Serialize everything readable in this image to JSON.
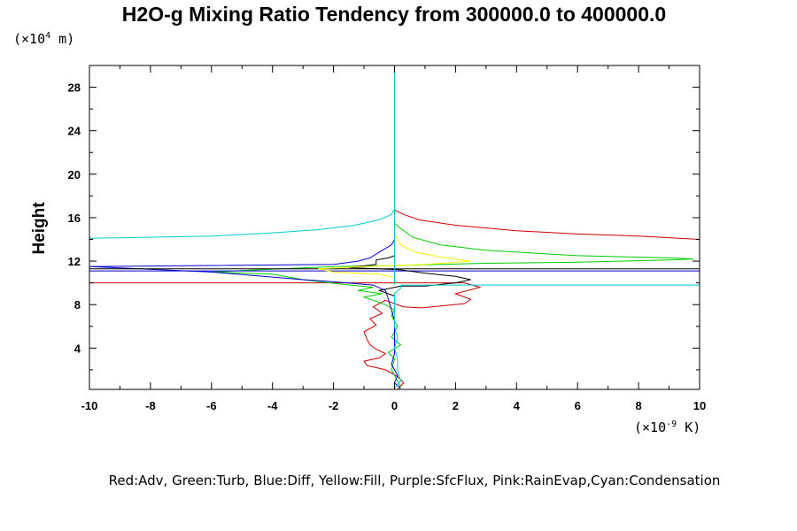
{
  "chart_data": {
    "type": "line",
    "title": "H2O-g Mixing Ratio Tendency from 300000.0 to 400000.0",
    "xlabel": "",
    "ylabel": "Height",
    "x_unit_prefix": "(×10",
    "x_unit_exp": "-9",
    "x_unit_suffix": " K)",
    "y_unit_prefix": "(×10",
    "y_unit_exp": "4",
    "y_unit_suffix": " m)",
    "xlim": [
      -10,
      10
    ],
    "ylim": [
      0.2,
      30
    ],
    "x_ticks": [
      -10,
      -8,
      -6,
      -4,
      -2,
      0,
      2,
      4,
      6,
      8,
      10
    ],
    "y_ticks": [
      4,
      8,
      12,
      16,
      20,
      24,
      28
    ],
    "grid": false,
    "legend_text": "Red:Adv, Green:Turb, Blue:Diff, Yellow:Fill, Purple:SfcFlux, Pink:RainEvap,Cyan:Condensation",
    "series": [
      {
        "color": "#cc0000",
        "points": [
          [
            0.1,
            0.2
          ],
          [
            0.3,
            0.8
          ],
          [
            0.1,
            1.4
          ],
          [
            -0.3,
            2.0
          ],
          [
            -0.9,
            2.4
          ],
          [
            -1.0,
            2.8
          ],
          [
            -0.5,
            3.1
          ],
          [
            -0.3,
            3.5
          ],
          [
            -0.6,
            3.9
          ],
          [
            -0.8,
            4.3
          ],
          [
            -0.9,
            4.8
          ],
          [
            -1.0,
            5.5
          ],
          [
            -0.6,
            6.1
          ],
          [
            -0.8,
            6.7
          ],
          [
            -0.4,
            7.2
          ],
          [
            -0.7,
            7.8
          ],
          [
            -0.3,
            8.4
          ],
          [
            0.3,
            7.8
          ],
          [
            0.9,
            7.7
          ],
          [
            2.3,
            8.1
          ],
          [
            2.5,
            8.5
          ],
          [
            2.0,
            9.0
          ],
          [
            2.8,
            9.6
          ],
          [
            2.3,
            10.0
          ],
          [
            -10.0,
            10.0
          ]
        ]
      },
      {
        "color": "#cc0000",
        "points": [
          [
            0.0,
            16.7
          ],
          [
            0.3,
            16.3
          ],
          [
            0.8,
            15.8
          ],
          [
            2.0,
            15.3
          ],
          [
            4.0,
            14.8
          ],
          [
            6.0,
            14.5
          ],
          [
            8.0,
            14.3
          ],
          [
            10.0,
            14.0
          ]
        ]
      },
      {
        "color": "#00cc00",
        "points": [
          [
            0.2,
            0.4
          ],
          [
            0.1,
            1.0
          ],
          [
            -0.1,
            2.0
          ],
          [
            0.0,
            3.0
          ],
          [
            -0.2,
            3.6
          ],
          [
            0.2,
            4.3
          ],
          [
            -0.1,
            5.0
          ],
          [
            0.1,
            6.0
          ],
          [
            -0.1,
            7.0
          ],
          [
            0.0,
            7.5
          ],
          [
            -0.3,
            8.0
          ],
          [
            -0.7,
            8.4
          ],
          [
            -1.0,
            8.7
          ],
          [
            -0.4,
            9.0
          ],
          [
            -1.2,
            9.3
          ],
          [
            -0.7,
            9.6
          ],
          [
            -1.8,
            9.9
          ],
          [
            -3.0,
            10.3
          ],
          [
            -4.0,
            10.8
          ],
          [
            -6.0,
            11.0
          ],
          [
            -4.5,
            11.2
          ],
          [
            -2.0,
            11.5
          ],
          [
            0.0,
            11.6
          ],
          [
            3.0,
            11.8
          ],
          [
            6.0,
            11.9
          ],
          [
            9.0,
            12.1
          ],
          [
            9.8,
            12.2
          ],
          [
            9.0,
            12.3
          ],
          [
            6.0,
            12.5
          ],
          [
            3.0,
            13.0
          ],
          [
            1.5,
            13.5
          ],
          [
            0.6,
            14.2
          ],
          [
            0.2,
            15.0
          ],
          [
            0.0,
            15.5
          ]
        ]
      },
      {
        "color": "#0000cc",
        "points": [
          [
            0.2,
            0.3
          ],
          [
            0.0,
            0.8
          ],
          [
            0.1,
            1.5
          ],
          [
            -0.1,
            2.5
          ],
          [
            0.0,
            3.5
          ],
          [
            0.0,
            4.5
          ],
          [
            0.0,
            5.5
          ],
          [
            0.0,
            6.5
          ],
          [
            -0.1,
            7.5
          ],
          [
            -0.2,
            8.5
          ],
          [
            -0.3,
            9.3
          ],
          [
            -0.7,
            9.8
          ],
          [
            -2.0,
            10.1
          ],
          [
            -3.0,
            10.3
          ],
          [
            -6.0,
            11.0
          ],
          [
            -10.0,
            11.5
          ],
          [
            -6.0,
            11.6
          ],
          [
            -2.0,
            11.7
          ],
          [
            -1.2,
            12.0
          ],
          [
            -0.8,
            12.3
          ],
          [
            -0.4,
            13.0
          ],
          [
            -0.1,
            13.5
          ],
          [
            0.0,
            14.0
          ]
        ]
      },
      {
        "color": "#0000cc",
        "points": [
          [
            -10.0,
            11.1
          ],
          [
            10.0,
            11.1
          ]
        ]
      },
      {
        "color": "#000000",
        "points": [
          [
            -10.0,
            11.3
          ],
          [
            10.0,
            11.3
          ]
        ]
      },
      {
        "color": "#000000",
        "points": [
          [
            0.0,
            8.0
          ],
          [
            0.0,
            8.8
          ],
          [
            -0.5,
            9.3
          ],
          [
            0.2,
            9.7
          ],
          [
            1.0,
            9.7
          ],
          [
            2.0,
            10.0
          ],
          [
            2.5,
            10.3
          ],
          [
            2.0,
            10.6
          ],
          [
            1.0,
            10.9
          ],
          [
            0.2,
            11.2
          ],
          [
            -1.5,
            11.4
          ],
          [
            -0.6,
            11.7
          ],
          [
            -0.6,
            12.1
          ],
          [
            -0.2,
            12.3
          ],
          [
            0.0,
            12.5
          ]
        ]
      },
      {
        "color": "#ffff00",
        "points": [
          [
            0.0,
            15.6
          ],
          [
            0.0,
            14.5
          ],
          [
            0.2,
            13.5
          ],
          [
            0.7,
            12.8
          ],
          [
            1.5,
            12.4
          ],
          [
            2.5,
            12.0
          ],
          [
            1.0,
            11.7
          ],
          [
            -1.0,
            11.5
          ],
          [
            -2.5,
            11.3
          ],
          [
            -2.0,
            11.0
          ],
          [
            -0.5,
            10.8
          ],
          [
            0.0,
            10.5
          ]
        ]
      },
      {
        "color": "#00cccc",
        "points": [
          [
            0.0,
            0.3
          ],
          [
            0.2,
            1.0
          ],
          [
            0.1,
            2.0
          ],
          [
            0.1,
            3.0
          ],
          [
            0.0,
            4.0
          ],
          [
            0.1,
            5.0
          ],
          [
            0.0,
            6.0
          ],
          [
            0.0,
            7.0
          ],
          [
            0.0,
            8.0
          ],
          [
            0.0,
            9.0
          ],
          [
            0.2,
            9.5
          ],
          [
            0.2,
            9.8
          ],
          [
            10.0,
            9.8
          ]
        ]
      },
      {
        "color": "#00cccc",
        "points": [
          [
            0.0,
            9.8
          ],
          [
            0.0,
            16.7
          ]
        ]
      },
      {
        "color": "#00cccc",
        "points": [
          [
            -10.0,
            14.1
          ],
          [
            -6.0,
            14.3
          ],
          [
            -4.0,
            14.6
          ],
          [
            -2.5,
            14.9
          ],
          [
            -1.3,
            15.3
          ],
          [
            -0.5,
            15.8
          ],
          [
            -0.1,
            16.3
          ],
          [
            0.0,
            16.8
          ],
          [
            0.0,
            30.0
          ]
        ]
      }
    ]
  }
}
